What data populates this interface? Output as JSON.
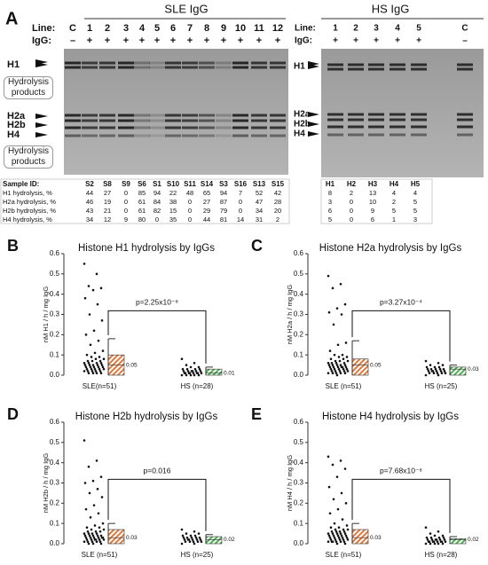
{
  "panel_a": {
    "label": "A",
    "sle": {
      "title": "SLE IgG",
      "line_label": "Line:",
      "igg_label": "IgG:",
      "lanes": [
        "C",
        "1",
        "2",
        "3",
        "4",
        "5",
        "6",
        "7",
        "8",
        "9",
        "10",
        "11",
        "12"
      ],
      "igg": [
        "–",
        "+",
        "+",
        "+",
        "+",
        "+",
        "+",
        "+",
        "+",
        "+",
        "+",
        "+",
        "+"
      ]
    },
    "hs": {
      "title": "HS IgG",
      "line_label": "Line:",
      "igg_label": "IgG:",
      "lanes": [
        "1",
        "2",
        "3",
        "4",
        "5",
        "C"
      ],
      "igg": [
        "+",
        "+",
        "+",
        "+",
        "+",
        "–"
      ]
    },
    "band_labels": [
      "H1",
      "Hydrolysis products",
      "H2a",
      "H2b",
      "H4",
      "Hydrolysis products"
    ],
    "hs_band_labels": [
      "H1",
      "H2a",
      "H2b",
      "H4"
    ],
    "sle_table": {
      "header": "Sample ID:",
      "samples": [
        "S2",
        "S8",
        "S9",
        "S6",
        "S1",
        "S10",
        "S11",
        "S14",
        "S3",
        "S16",
        "S13",
        "S15"
      ],
      "rows": [
        {
          "label": "H1 hydrolysis, %",
          "values": [
            44,
            27,
            0,
            85,
            94,
            22,
            48,
            65,
            94,
            7,
            52,
            42
          ]
        },
        {
          "label": "H2a hydrolysis, %",
          "values": [
            46,
            19,
            0,
            61,
            84,
            38,
            0,
            27,
            87,
            0,
            47,
            28
          ]
        },
        {
          "label": "H2b hydrolysis, %",
          "values": [
            43,
            21,
            0,
            61,
            82,
            15,
            0,
            29,
            79,
            0,
            34,
            20
          ]
        },
        {
          "label": "H4 hydrolysis, %",
          "values": [
            34,
            12,
            9,
            80,
            0,
            35,
            0,
            44,
            81,
            14,
            31,
            2
          ]
        }
      ]
    },
    "hs_table": {
      "columns": [
        "H1",
        "H2",
        "H3",
        "H4",
        "H5"
      ],
      "rows": [
        [
          8,
          2,
          13,
          4,
          4
        ],
        [
          3,
          0,
          10,
          2,
          5
        ],
        [
          6,
          0,
          9,
          5,
          5
        ],
        [
          5,
          0,
          6,
          1,
          3
        ]
      ]
    }
  },
  "chart_data": [
    {
      "type": "strip",
      "panel": "B",
      "title": "Histone H1 hydrolysis by IgGs",
      "y_label": "nM H1 / h / mg IgG",
      "annotation": "p=2.25x10⁻⁸",
      "ylim": [
        0,
        0.6
      ],
      "yticks": [
        {
          "value": 0,
          "label": "0.0"
        },
        0.1,
        0.2,
        0.3,
        0.4,
        0.5,
        0.6
      ],
      "series": [
        {
          "name": "SLE(n=51)",
          "color": "#e0783c",
          "mean": 0.05,
          "box_top": 0.1,
          "whisker_top": 0.18,
          "values": [
            0.55,
            0.5,
            0.44,
            0.43,
            0.42,
            0.38,
            0.35,
            0.3,
            0.27,
            0.22,
            0.2,
            0.17,
            0.15,
            0.12,
            0.11,
            0.1,
            0.09,
            0.09,
            0.08,
            0.08,
            0.07,
            0.07,
            0.07,
            0.06,
            0.06,
            0.06,
            0.06,
            0.05,
            0.05,
            0.05,
            0.05,
            0.05,
            0.04,
            0.04,
            0.04,
            0.04,
            0.04,
            0.03,
            0.03,
            0.03,
            0.03,
            0.03,
            0.02,
            0.02,
            0.02,
            0.02,
            0.02,
            0.01,
            0.01,
            0.01,
            0.01
          ]
        },
        {
          "name": "HS (n=28)",
          "color": "#4caf50",
          "mean": 0.01,
          "box_top": 0.03,
          "whisker_top": 0.04,
          "values": [
            0.08,
            0.06,
            0.05,
            0.04,
            0.04,
            0.03,
            0.03,
            0.03,
            0.03,
            0.02,
            0.02,
            0.02,
            0.02,
            0.02,
            0.02,
            0.01,
            0.01,
            0.01,
            0.01,
            0.01,
            0.01,
            0.01,
            0.01,
            0,
            0,
            0,
            0,
            0
          ]
        }
      ]
    },
    {
      "type": "strip",
      "panel": "C",
      "title": "Histone H2a hydrolysis by IgGs",
      "y_label": "nM H2a / h / mg IgG",
      "annotation": "p=3.27x10⁻⁴",
      "ylim": [
        0,
        0.6
      ],
      "yticks": [
        {
          "value": 0,
          "label": "0.0"
        },
        0.1,
        0.2,
        0.3,
        0.4,
        0.5,
        0.6
      ],
      "series": [
        {
          "name": "SLE (n=51)",
          "color": "#e0783c",
          "mean": 0.05,
          "box_top": 0.08,
          "whisker_top": 0.17,
          "values": [
            0.49,
            0.45,
            0.43,
            0.35,
            0.33,
            0.31,
            0.3,
            0.25,
            0.16,
            0.15,
            0.12,
            0.1,
            0.1,
            0.09,
            0.09,
            0.08,
            0.08,
            0.07,
            0.07,
            0.07,
            0.06,
            0.06,
            0.06,
            0.06,
            0.05,
            0.05,
            0.05,
            0.05,
            0.05,
            0.04,
            0.04,
            0.04,
            0.04,
            0.04,
            0.04,
            0.03,
            0.03,
            0.03,
            0.03,
            0.03,
            0.02,
            0.02,
            0.02,
            0.02,
            0.02,
            0.01,
            0.01,
            0.01,
            0.01,
            0.01,
            0
          ]
        },
        {
          "name": "HS (n=25)",
          "color": "#4caf50",
          "mean": 0.03,
          "box_top": 0.04,
          "whisker_top": 0.05,
          "values": [
            0.07,
            0.06,
            0.05,
            0.05,
            0.04,
            0.04,
            0.04,
            0.03,
            0.03,
            0.03,
            0.03,
            0.03,
            0.02,
            0.02,
            0.02,
            0.02,
            0.02,
            0.02,
            0.01,
            0.01,
            0.01,
            0.01,
            0.01,
            0,
            0
          ]
        }
      ]
    },
    {
      "type": "strip",
      "panel": "D",
      "title": "Histone H2b hydrolysis by IgGs",
      "y_label": "nM H2b / h / mg IgG",
      "annotation": "p=0.016",
      "ylim": [
        0,
        0.6
      ],
      "yticks": [
        {
          "value": 0,
          "label": "0.0"
        },
        0.1,
        0.2,
        0.3,
        0.4,
        0.5,
        0.6
      ],
      "series": [
        {
          "name": "SLE (n=51)",
          "color": "#e0783c",
          "mean": 0.03,
          "box_top": 0.07,
          "whisker_top": 0.1,
          "values": [
            0.51,
            0.41,
            0.38,
            0.33,
            0.31,
            0.3,
            0.27,
            0.25,
            0.23,
            0.19,
            0.17,
            0.15,
            0.13,
            0.1,
            0.09,
            0.08,
            0.08,
            0.07,
            0.07,
            0.06,
            0.06,
            0.06,
            0.05,
            0.05,
            0.05,
            0.05,
            0.04,
            0.04,
            0.04,
            0.04,
            0.04,
            0.03,
            0.03,
            0.03,
            0.03,
            0.03,
            0.03,
            0.02,
            0.02,
            0.02,
            0.02,
            0.02,
            0.02,
            0.01,
            0.01,
            0.01,
            0.01,
            0.01,
            0,
            0,
            0
          ]
        },
        {
          "name": "HS (n=25)",
          "color": "#4caf50",
          "mean": 0.02,
          "box_top": 0.035,
          "whisker_top": 0.045,
          "values": [
            0.07,
            0.06,
            0.05,
            0.05,
            0.04,
            0.04,
            0.04,
            0.03,
            0.03,
            0.03,
            0.03,
            0.03,
            0.02,
            0.02,
            0.02,
            0.02,
            0.02,
            0.02,
            0.01,
            0.01,
            0.01,
            0.01,
            0.01,
            0,
            0
          ]
        }
      ]
    },
    {
      "type": "strip",
      "panel": "E",
      "title": "Histone H4 hydrolysis by IgGs",
      "y_label": "nM H4 / h / mg IgG",
      "annotation": "p=7.68x10⁻⁸",
      "ylim": [
        0,
        0.6
      ],
      "yticks": [
        {
          "value": 0,
          "label": "0.0"
        },
        0.1,
        0.2,
        0.3,
        0.4,
        0.5,
        0.6
      ],
      "series": [
        {
          "name": "SLE (n=51)",
          "color": "#e0783c",
          "mean": 0.03,
          "box_top": 0.07,
          "whisker_top": 0.1,
          "values": [
            0.43,
            0.41,
            0.39,
            0.37,
            0.33,
            0.28,
            0.25,
            0.22,
            0.2,
            0.17,
            0.15,
            0.12,
            0.1,
            0.09,
            0.08,
            0.08,
            0.07,
            0.07,
            0.07,
            0.06,
            0.06,
            0.06,
            0.06,
            0.05,
            0.05,
            0.05,
            0.05,
            0.05,
            0.04,
            0.04,
            0.04,
            0.04,
            0.04,
            0.03,
            0.03,
            0.03,
            0.03,
            0.03,
            0.02,
            0.02,
            0.02,
            0.02,
            0.02,
            0.01,
            0.01,
            0.01,
            0.01,
            0.01,
            0.01,
            0,
            0
          ]
        },
        {
          "name": "HS (n=28)",
          "color": "#4caf50",
          "mean": 0.02,
          "box_top": 0.025,
          "whisker_top": 0.035,
          "values": [
            0.08,
            0.06,
            0.05,
            0.04,
            0.04,
            0.03,
            0.03,
            0.03,
            0.03,
            0.02,
            0.02,
            0.02,
            0.02,
            0.02,
            0.02,
            0.01,
            0.01,
            0.01,
            0.01,
            0.01,
            0.01,
            0.01,
            0.01,
            0,
            0,
            0,
            0,
            0
          ]
        }
      ]
    }
  ]
}
